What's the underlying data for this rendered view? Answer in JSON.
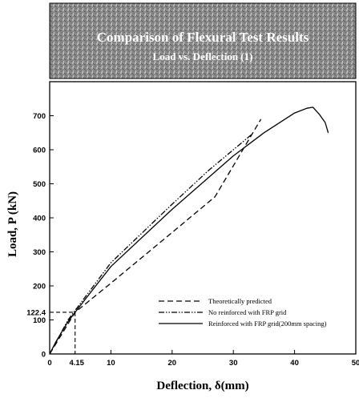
{
  "chart_data": {
    "type": "line",
    "title": "Comparison of Flexural Test Results",
    "subtitle": "Load vs. Deflection  (1)",
    "xlabel": "Deflection, δ(mm)",
    "ylabel": "Load, P (kN)",
    "xlim": [
      0,
      50
    ],
    "ylim": [
      0,
      800
    ],
    "x_ticks": [
      "0",
      "10",
      "20",
      "30",
      "40",
      "50"
    ],
    "x_special_tick": "4.15",
    "y_ticks": [
      "0",
      "100",
      "200",
      "300",
      "400",
      "500",
      "600",
      "700"
    ],
    "y_special_tick": "122.4",
    "annotation_point": {
      "x": 4.15,
      "y": 122.4
    },
    "legend_position": "lower-right",
    "series": [
      {
        "name": "Theoretically predicted",
        "style": "dashed",
        "x": [
          0,
          4.15,
          10,
          20,
          27,
          34.5
        ],
        "y": [
          0,
          122.4,
          208,
          357,
          462,
          690
        ]
      },
      {
        "name": "No reinforced with FRP grid",
        "style": "dash-dot-dot",
        "x": [
          0,
          3,
          10,
          20,
          26,
          30,
          33
        ],
        "y": [
          0,
          100,
          268,
          440,
          540,
          600,
          645
        ]
      },
      {
        "name": "Reinforced with FRP grid(200mm spacing)",
        "style": "solid",
        "x": [
          0,
          1,
          3,
          4.15,
          10,
          20,
          27,
          30,
          35,
          40,
          42,
          43,
          44,
          45,
          45.5
        ],
        "y": [
          0,
          35,
          95,
          122.4,
          257,
          425,
          535,
          582,
          650,
          708,
          722,
          725,
          705,
          680,
          650
        ]
      }
    ]
  }
}
